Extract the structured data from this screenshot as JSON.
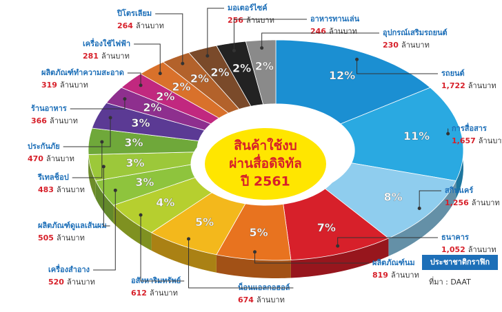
{
  "chart_data": {
    "type": "pie",
    "center_title": [
      "สินค้าใช้งบ",
      "ผ่านสื่อดิจิทัล",
      "ปี 2561"
    ],
    "categories": [
      "รถยนต์",
      "การสื่อสาร",
      "สกินแคร์",
      "ธนาคาร",
      "ผลิตภัณฑ์นม",
      "น็อนแอลกอฮอล์",
      "อสังหาริมทรัพย์",
      "เครื่องสำอาง",
      "ผลิตภัณฑ์ดูแลเส้นผม",
      "รีเทลช็อป",
      "ประกันภัย",
      "ร้านอาหาร",
      "ผลิตภัณฑ์ทำความสะอาด",
      "เครื่องใช้ไฟฟ้า",
      "ปิโตรเลียม",
      "มอเตอร์ไซค์",
      "อาหารทานเล่น",
      "อุปกรณ์เสริมรถยนต์"
    ],
    "values": [
      12,
      11,
      8,
      7,
      5,
      5,
      4,
      3,
      3,
      3,
      3,
      2,
      2,
      2,
      2,
      2,
      2,
      2
    ],
    "value_labels": [
      "12%",
      "11%",
      "8%",
      "7%",
      "5%",
      "5%",
      "4%",
      "3%",
      "3%",
      "3%",
      "3%",
      "2%",
      "2%",
      "2%",
      "2%",
      "2%",
      "2%",
      "2%"
    ],
    "amounts": [
      1722,
      1657,
      1256,
      1052,
      819,
      674,
      612,
      520,
      505,
      483,
      470,
      366,
      319,
      281,
      264,
      256,
      246,
      230
    ],
    "amount_labels": [
      "1,722",
      "1,657",
      "1,256",
      "1,052",
      "819",
      "674",
      "612",
      "520",
      "505",
      "483",
      "470",
      "366",
      "319",
      "281",
      "264",
      "256",
      "246",
      "230"
    ],
    "unit": "ล้านบาท",
    "colors": [
      "#1b8fd2",
      "#2aa9e1",
      "#8fcdee",
      "#d7202a",
      "#e8731f",
      "#f3b81c",
      "#b6cf2f",
      "#8ec43d",
      "#9cc83a",
      "#6fa83a",
      "#5b3a94",
      "#8e2f8e",
      "#c1287f",
      "#d9712b",
      "#b3622b",
      "#7a4a2a",
      "#222222",
      "#8a8a8a"
    ],
    "brand": "ประชาชาติกราฟิก",
    "source": "ที่มา : DAAT"
  }
}
